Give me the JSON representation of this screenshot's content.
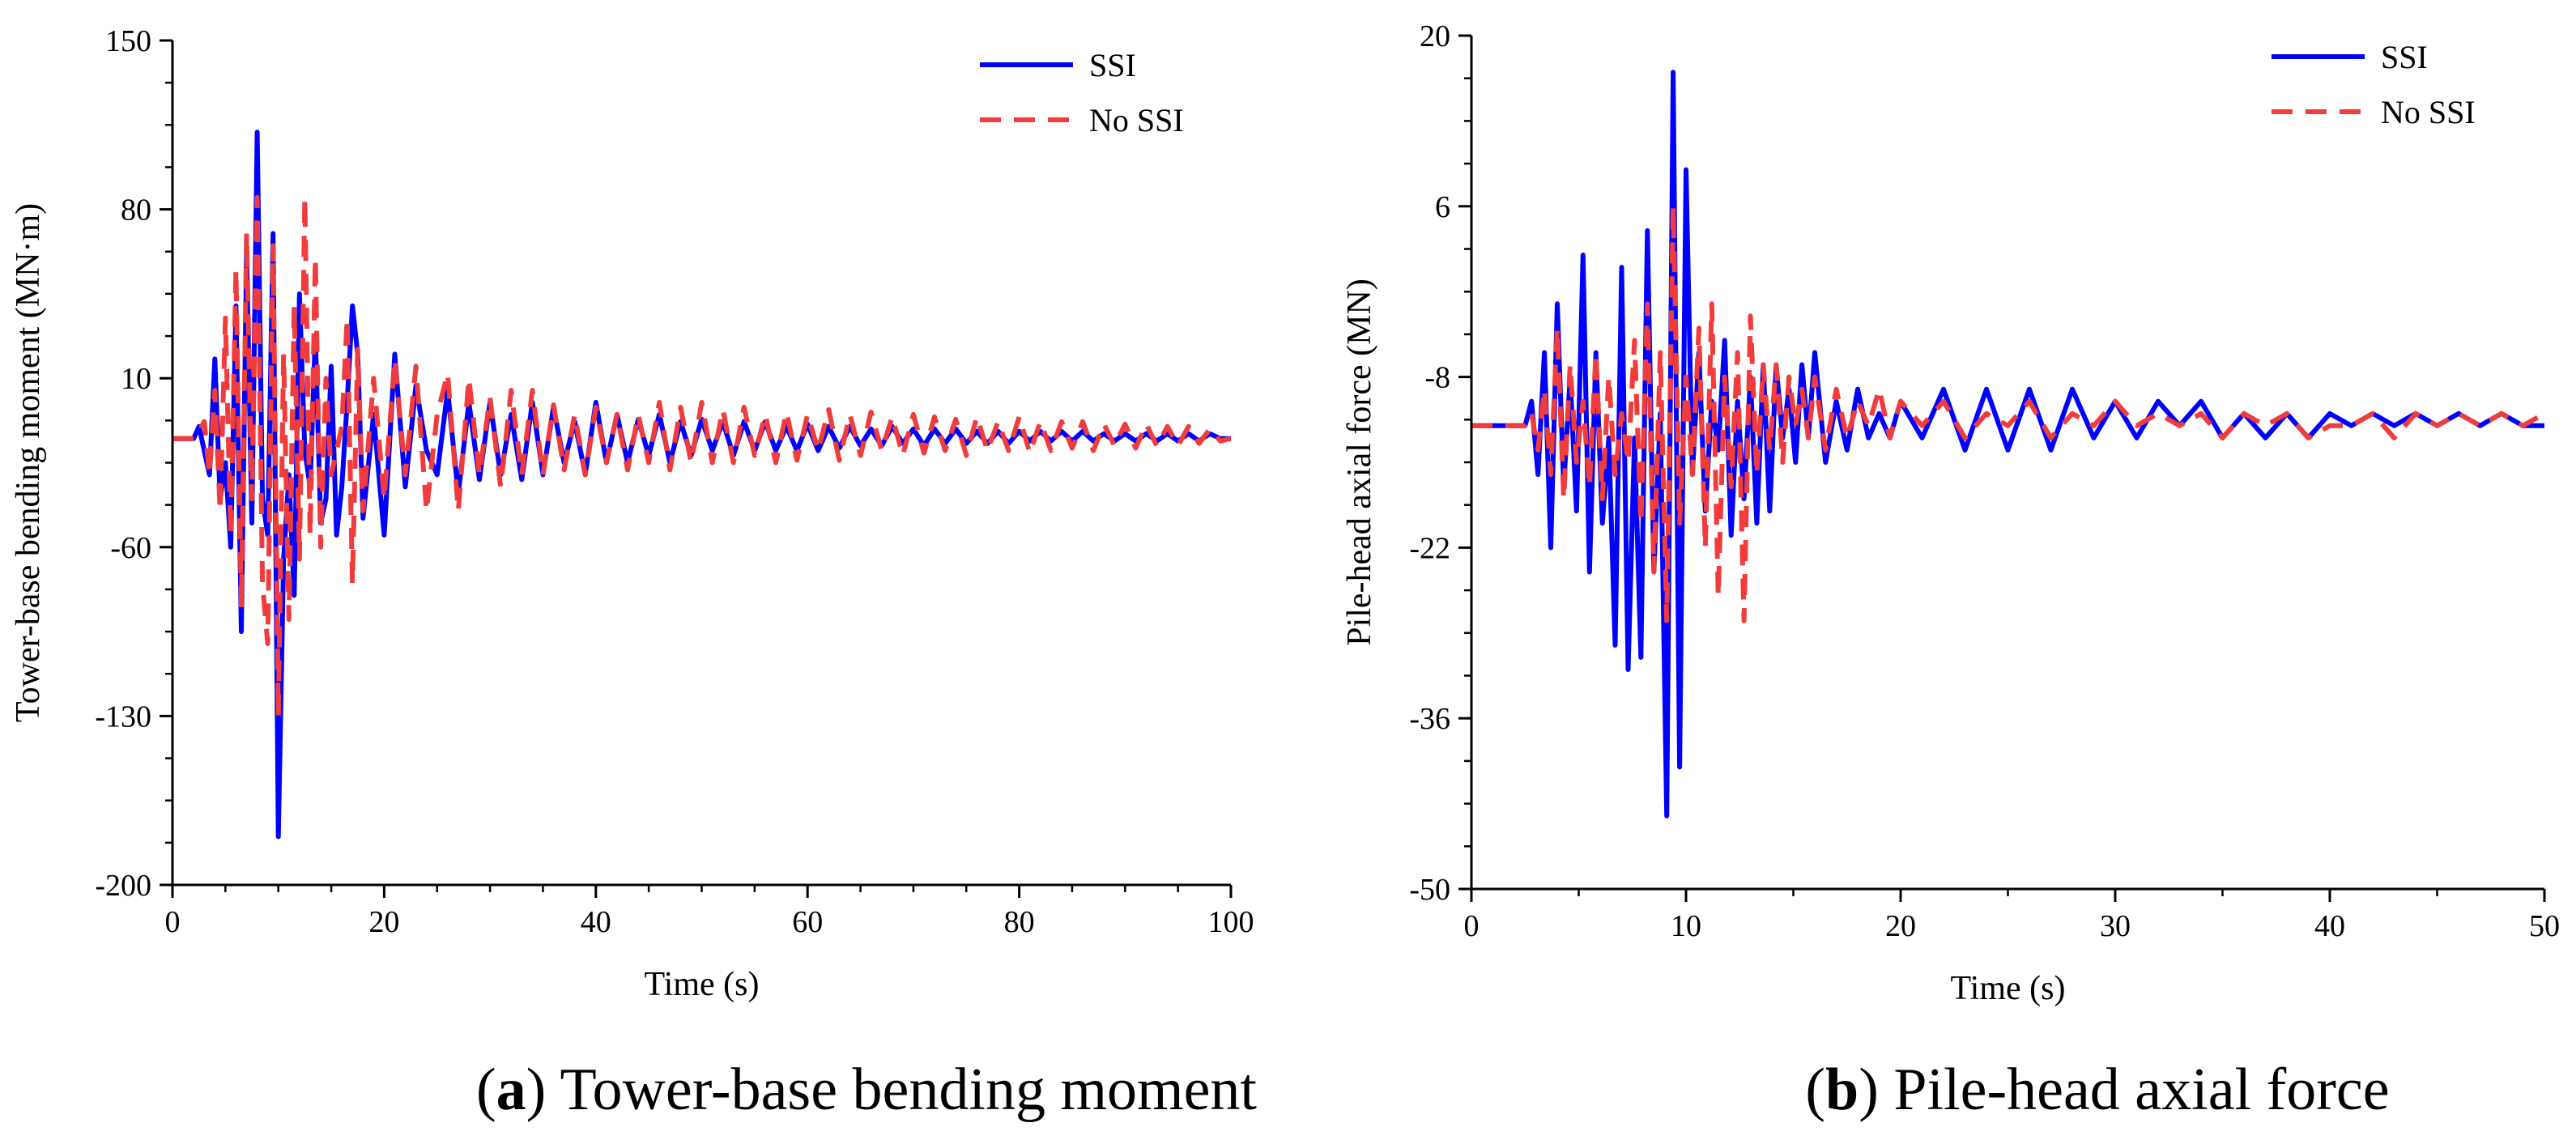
{
  "chart_data": [
    {
      "type": "line",
      "caption_letter": "a",
      "caption_text": "Tower-base bending moment",
      "xlabel": "Time (s)",
      "ylabel": "Tower-base bending moment (MN·m)",
      "xlim": [
        0,
        100
      ],
      "ylim": [
        -200,
        150
      ],
      "xticks": [
        0,
        20,
        40,
        60,
        80,
        100
      ],
      "yticks": [
        -200,
        -130,
        -60,
        10,
        80,
        150
      ],
      "x_minor_step": 5,
      "y_minor_step": 17.5,
      "legend": {
        "position": "top-right",
        "entries": [
          "SSI",
          "No SSI"
        ]
      },
      "series": [
        {
          "name": "SSI",
          "color": "#0000ff",
          "style": "solid",
          "x": [
            0,
            2,
            2.5,
            3,
            3.5,
            4,
            4.5,
            5,
            5.5,
            6,
            6.5,
            7,
            7.5,
            8,
            8.5,
            9,
            9.5,
            10,
            10.5,
            11,
            11.5,
            12,
            12.5,
            13,
            13.5,
            14,
            14.5,
            15,
            15.5,
            16,
            16.5,
            17,
            17.5,
            18,
            19,
            20,
            21,
            22,
            23,
            24,
            25,
            26,
            27,
            28,
            29,
            30,
            31,
            32,
            33,
            34,
            35,
            36,
            37,
            38,
            39,
            40,
            41,
            42,
            43,
            44,
            45,
            46,
            47,
            48,
            49,
            50,
            51,
            52,
            53,
            54,
            55,
            56,
            57,
            58,
            59,
            60,
            61,
            62,
            63,
            64,
            65,
            66,
            67,
            68,
            69,
            70,
            71,
            72,
            73,
            74,
            75,
            76,
            77,
            78,
            79,
            80,
            81,
            82,
            83,
            84,
            85,
            86,
            87,
            88,
            89,
            90,
            91,
            92,
            93,
            94,
            95,
            96,
            97,
            98,
            99,
            100
          ],
          "y": [
            -15,
            -15,
            -10,
            -20,
            -30,
            18,
            -40,
            -25,
            -60,
            40,
            -95,
            62,
            -50,
            112,
            -40,
            -55,
            70,
            -180,
            -65,
            -30,
            -80,
            45,
            -20,
            -35,
            28,
            -50,
            -40,
            15,
            -55,
            -35,
            0,
            40,
            20,
            -48,
            -5,
            -55,
            20,
            -35,
            7,
            -20,
            -30,
            5,
            -38,
            0,
            -32,
            0,
            -30,
            -5,
            -32,
            0,
            -30,
            -2,
            -25,
            -8,
            -30,
            0,
            -25,
            -5,
            -25,
            -7,
            -22,
            -5,
            -25,
            -8,
            -22,
            -7,
            -20,
            -8,
            -22,
            -8,
            -20,
            -8,
            -20,
            -10,
            -20,
            -9,
            -20,
            -10,
            -19,
            -10,
            -18,
            -11,
            -18,
            -10,
            -17,
            -11,
            -18,
            -11,
            -17,
            -11,
            -17,
            -12,
            -17,
            -12,
            -17,
            -12,
            -16,
            -12,
            -16,
            -12,
            -16,
            -12,
            -16,
            -13,
            -16,
            -13,
            -16,
            -13,
            -16,
            -13,
            -16,
            -13,
            -16,
            -13,
            -15,
            -15
          ]
        },
        {
          "name": "No SSI",
          "color": "#f03c3c",
          "style": "dashed",
          "x": [
            0,
            2,
            2.5,
            3,
            3.5,
            4,
            4.5,
            5,
            5.5,
            6,
            6.5,
            7,
            7.5,
            8,
            8.5,
            9,
            9.5,
            10,
            10.5,
            11,
            11.5,
            12,
            12.5,
            13,
            13.5,
            14,
            14.5,
            15,
            15.5,
            16,
            16.5,
            17,
            17.5,
            18,
            19,
            20,
            21,
            22,
            23,
            24,
            25,
            26,
            27,
            28,
            29,
            30,
            31,
            32,
            33,
            34,
            35,
            36,
            37,
            38,
            39,
            40,
            41,
            42,
            43,
            44,
            45,
            46,
            47,
            48,
            49,
            50,
            51,
            52,
            53,
            54,
            55,
            56,
            57,
            58,
            59,
            60,
            61,
            62,
            63,
            64,
            65,
            66,
            67,
            68,
            69,
            70,
            71,
            72,
            73,
            74,
            75,
            76,
            77,
            78,
            79,
            80,
            81,
            82,
            83,
            84,
            85,
            86,
            87,
            88,
            89,
            90,
            91,
            92,
            93,
            94,
            95,
            96,
            97,
            98,
            99,
            100
          ],
          "y": [
            -15,
            -15,
            -12,
            -8,
            -30,
            5,
            -45,
            35,
            -55,
            55,
            -85,
            70,
            -40,
            85,
            -75,
            -100,
            65,
            -130,
            20,
            -90,
            40,
            -65,
            85,
            -55,
            60,
            -60,
            10,
            -30,
            -20,
            -10,
            35,
            -75,
            22,
            -45,
            10,
            -40,
            18,
            -30,
            15,
            -45,
            -5,
            12,
            -45,
            10,
            -30,
            2,
            -35,
            5,
            -30,
            5,
            -30,
            -1,
            -28,
            -5,
            -30,
            -2,
            -25,
            -5,
            -28,
            -5,
            -25,
            0,
            -28,
            -2,
            -25,
            0,
            -25,
            -3,
            -25,
            -2,
            -22,
            -5,
            -25,
            -4,
            -24,
            -5,
            -20,
            -3,
            -24,
            -5,
            -22,
            -4,
            -20,
            -6,
            -22,
            -5,
            -21,
            -6,
            -20,
            -7,
            -22,
            -6,
            -20,
            -8,
            -20,
            -6,
            -21,
            -8,
            -20,
            -8,
            -19,
            -8,
            -20,
            -9,
            -18,
            -9,
            -19,
            -9,
            -18,
            -10,
            -18,
            -10,
            -17,
            -11,
            -16,
            -15
          ]
        }
      ]
    },
    {
      "type": "line",
      "caption_letter": "b",
      "caption_text": "Pile-head axial force",
      "xlabel": "Time (s)",
      "ylabel": "Pile-head axial force (MN)",
      "xlim": [
        0,
        50
      ],
      "ylim": [
        -50,
        20
      ],
      "xticks": [
        0,
        10,
        20,
        30,
        40,
        50
      ],
      "yticks": [
        -50,
        -36,
        -22,
        -8,
        6,
        20
      ],
      "x_minor_step": 5,
      "y_minor_step": 3.5,
      "legend": {
        "position": "top-right",
        "entries": [
          "SSI",
          "No SSI"
        ]
      },
      "series": [
        {
          "name": "SSI",
          "color": "#0000ff",
          "style": "solid",
          "x": [
            0,
            2.5,
            2.8,
            3.1,
            3.4,
            3.7,
            4.0,
            4.3,
            4.6,
            4.9,
            5.2,
            5.5,
            5.8,
            6.1,
            6.4,
            6.7,
            7.0,
            7.3,
            7.6,
            7.9,
            8.2,
            8.5,
            8.8,
            9.1,
            9.4,
            9.7,
            10.0,
            10.3,
            10.6,
            10.9,
            11.2,
            11.5,
            11.8,
            12.1,
            12.4,
            12.7,
            13.0,
            13.3,
            13.6,
            13.9,
            14.2,
            14.5,
            14.8,
            15.1,
            15.4,
            15.7,
            16.0,
            16.5,
            17,
            17.5,
            18,
            18.5,
            19,
            19.5,
            20,
            21,
            22,
            23,
            24,
            25,
            26,
            27,
            28,
            29,
            30,
            31,
            32,
            33,
            34,
            35,
            36,
            37,
            38,
            39,
            40,
            41,
            42,
            43,
            44,
            45,
            46,
            47,
            48,
            49,
            50
          ],
          "y": [
            -12,
            -12,
            -10,
            -16,
            -6,
            -22,
            -2,
            -17,
            -8,
            -19,
            2,
            -24,
            -6,
            -20,
            -13,
            -30,
            1,
            -32,
            -13,
            -31,
            4,
            -24,
            -11,
            -44,
            17,
            -40,
            9,
            -16,
            -6,
            -19,
            -10,
            -14,
            -5,
            -21,
            -10,
            -18,
            -8,
            -20,
            -7,
            -19,
            -7,
            -13,
            -9,
            -15,
            -7,
            -13,
            -6,
            -15,
            -10,
            -14,
            -9,
            -13,
            -11,
            -13,
            -10,
            -13,
            -9,
            -14,
            -9,
            -14,
            -9,
            -14,
            -9,
            -13,
            -10,
            -13,
            -10,
            -12,
            -10,
            -13,
            -11,
            -13,
            -11,
            -13,
            -11,
            -12,
            -11,
            -12,
            -11,
            -12,
            -11,
            -12,
            -11,
            -12,
            -12
          ]
        },
        {
          "name": "No SSI",
          "color": "#f03c3c",
          "style": "dashed",
          "x": [
            0,
            2.5,
            2.8,
            3.1,
            3.4,
            3.7,
            4.0,
            4.3,
            4.6,
            4.9,
            5.2,
            5.5,
            5.8,
            6.1,
            6.4,
            6.7,
            7.0,
            7.3,
            7.6,
            7.9,
            8.2,
            8.5,
            8.8,
            9.1,
            9.4,
            9.7,
            10.0,
            10.3,
            10.6,
            10.9,
            11.2,
            11.5,
            11.8,
            12.1,
            12.4,
            12.7,
            13.0,
            13.3,
            13.6,
            13.9,
            14.2,
            14.5,
            14.8,
            15.1,
            15.4,
            15.7,
            16.0,
            16.5,
            17,
            17.5,
            18,
            18.5,
            19,
            19.5,
            20,
            21,
            22,
            23,
            24,
            25,
            26,
            27,
            28,
            29,
            30,
            31,
            32,
            33,
            34,
            35,
            36,
            37,
            38,
            39,
            40,
            41,
            42,
            43,
            44,
            45,
            46,
            47,
            48,
            49,
            50
          ],
          "y": [
            -12,
            -12,
            -11,
            -14,
            -9,
            -16,
            -4,
            -18,
            -7,
            -15,
            -10,
            -17,
            -6,
            -18,
            -8,
            -16,
            -11,
            -15,
            -5,
            -20,
            -2,
            -24,
            -6,
            -28,
            6,
            -20,
            -8,
            -16,
            -4,
            -22,
            -2,
            -26,
            -8,
            -17,
            -6,
            -28,
            -3,
            -16,
            -7,
            -14,
            -7,
            -15,
            -8,
            -12,
            -9,
            -13,
            -8,
            -14,
            -9,
            -13,
            -10,
            -12,
            -9,
            -13,
            -10,
            -12,
            -10,
            -13,
            -11,
            -12,
            -10,
            -13,
            -11,
            -12,
            -10,
            -12,
            -11,
            -12,
            -11,
            -13,
            -11,
            -12,
            -11,
            -13,
            -12,
            -12,
            -11,
            -13,
            -11,
            -12,
            -11,
            -12,
            -11,
            -12,
            -11
          ]
        }
      ]
    }
  ]
}
